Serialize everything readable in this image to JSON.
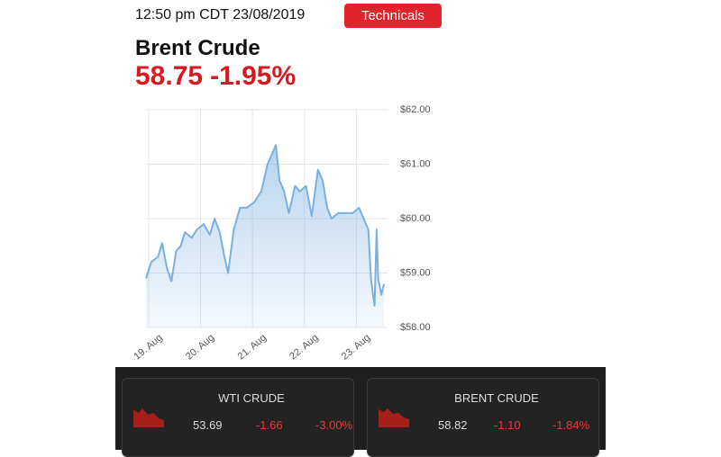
{
  "header": {
    "time": "12:50 pm CDT 23/08/2019",
    "button": "Technicals"
  },
  "title": "Brent Crude",
  "price": "58.75",
  "change": "-1.95%",
  "chart_data": {
    "type": "area",
    "color": "#7ab0e0",
    "grid": true,
    "x": [
      18.95,
      19.05,
      19.18,
      19.26,
      19.35,
      19.44,
      19.53,
      19.62,
      19.7,
      19.83,
      19.93,
      20.06,
      20.18,
      20.27,
      20.37,
      20.46,
      20.53,
      20.64,
      20.76,
      20.89,
      21.03,
      21.17,
      21.29,
      21.38,
      21.45,
      21.52,
      21.61,
      21.7,
      21.82,
      21.91,
      22.03,
      22.14,
      22.26,
      22.35,
      22.44,
      22.52,
      22.65,
      22.79,
      22.93,
      23.05,
      23.14,
      23.23,
      23.28,
      23.32,
      23.35,
      23.39,
      23.42,
      23.48,
      23.53
    ],
    "values": [
      58.9,
      59.2,
      59.3,
      59.55,
      59.1,
      58.85,
      59.4,
      59.5,
      59.75,
      59.65,
      59.8,
      59.9,
      59.7,
      60.0,
      59.75,
      59.3,
      59.0,
      59.8,
      60.2,
      60.2,
      60.3,
      60.5,
      61.0,
      61.2,
      61.35,
      60.7,
      60.5,
      60.1,
      60.6,
      60.5,
      60.6,
      60.05,
      60.9,
      60.7,
      60.2,
      60.0,
      60.1,
      60.1,
      60.1,
      60.2,
      60.0,
      59.8,
      58.9,
      58.6,
      58.4,
      59.8,
      58.9,
      58.6,
      58.8
    ],
    "xlim": [
      18.95,
      23.6
    ],
    "xticks": [
      {
        "value": 19,
        "label": "19. Aug"
      },
      {
        "value": 20,
        "label": "20. Aug"
      },
      {
        "value": 21,
        "label": "21. Aug"
      },
      {
        "value": 22,
        "label": "22. Aug"
      },
      {
        "value": 23,
        "label": "23. Aug"
      }
    ],
    "ylim": [
      58,
      62
    ],
    "yticks": [
      {
        "value": 58,
        "label": "$58.00"
      },
      {
        "value": 59,
        "label": "$59.00"
      },
      {
        "value": 60,
        "label": "$60.00"
      },
      {
        "value": 61,
        "label": "$61.00"
      },
      {
        "value": 62,
        "label": "$62.00"
      }
    ]
  },
  "cards": [
    {
      "name": "WTI CRUDE",
      "price": "53.69",
      "change": "-1.66",
      "percent": "-3.00%"
    },
    {
      "name": "BRENT CRUDE",
      "price": "58.82",
      "change": "-1.10",
      "percent": "-1.84%"
    }
  ]
}
